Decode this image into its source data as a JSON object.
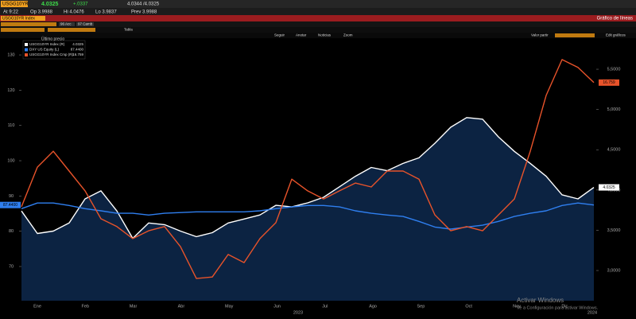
{
  "header": {
    "ticker": "USGG10YR",
    "last": "4.0325",
    "change": "+.0337",
    "bidask": "4.0344 /4.0325",
    "at": "At 9:22",
    "open": "Op 3.9988",
    "high": "Hi 4.0476",
    "low": "Lo 3.9837",
    "prev": "Prev 3.9988"
  },
  "title_bar": {
    "security": "USGG10YR Index",
    "view": "Gráfico de líneas"
  },
  "toolbar": [
    "96 Acc",
    "97 Camb"
  ],
  "table_button": "Tabla",
  "tools": [
    "Seguir",
    "Anotar",
    "Noticias",
    "Zoom"
  ],
  "tools_right": [
    "Valor partir",
    "Edit gráficos"
  ],
  "chart_data": {
    "type": "line",
    "legend_title": "Último precio",
    "months": [
      "Ene",
      "Feb",
      "Mar",
      "Abr",
      "May",
      "Jun",
      "Jul",
      "Ago",
      "Sep",
      "Oct",
      "Nov",
      "Dic"
    ],
    "year_labels": [
      "2023",
      "2024"
    ],
    "ylim": [
      60.3,
      134.3
    ],
    "yticks": [
      70,
      80,
      90,
      100,
      110,
      120,
      130
    ],
    "y2lim": [
      2.625,
      5.866
    ],
    "y2ticks": [
      {
        "value": 3,
        "label": "3,0000"
      },
      {
        "value": 3.5,
        "label": "3,5000"
      },
      {
        "value": 4,
        "label": "4,0000"
      },
      {
        "value": 4.5,
        "label": "4,5000"
      },
      {
        "value": 5,
        "label": "5,0000"
      },
      {
        "value": 5.5,
        "label": "5,5000"
      }
    ],
    "y3lim": [
      8.4,
      18.4
    ],
    "series": [
      {
        "name": "USGG10YR Index (R)",
        "color": "#ffffff",
        "axis": "y2",
        "area": true,
        "area_color": "#0c2342",
        "last_label": "4.0325",
        "values": [
          3.74,
          3.46,
          3.49,
          3.59,
          3.89,
          3.99,
          3.74,
          3.4,
          3.59,
          3.57,
          3.49,
          3.42,
          3.47,
          3.59,
          3.64,
          3.69,
          3.81,
          3.79,
          3.84,
          3.91,
          4.04,
          4.17,
          4.28,
          4.24,
          4.33,
          4.4,
          4.58,
          4.78,
          4.9,
          4.88,
          4.66,
          4.48,
          4.33,
          4.17,
          3.94,
          3.89,
          4.0325
        ]
      },
      {
        "name": "DXY US Equity (L)",
        "color": "#2f7ff0",
        "axis": "y",
        "last_label": "87.4400",
        "values": [
          86.4,
          88.0,
          88.0,
          87.3,
          86.4,
          85.8,
          85.1,
          85.1,
          84.6,
          85.1,
          85.3,
          85.5,
          85.5,
          85.5,
          85.5,
          85.8,
          86.4,
          86.9,
          87.3,
          87.3,
          86.9,
          85.8,
          85.1,
          84.6,
          84.2,
          82.8,
          81.2,
          80.6,
          81.2,
          81.7,
          82.8,
          84.2,
          85.1,
          85.8,
          87.3,
          88.0,
          87.44
        ]
      },
      {
        "name": "USGG10YR Index Cmp (R)",
        "color": "#e8532a",
        "axis": "y3",
        "last_label": "16.759",
        "values": [
          12.0,
          13.52,
          14.13,
          13.37,
          12.61,
          11.54,
          11.24,
          10.78,
          11.08,
          11.24,
          10.47,
          9.25,
          9.31,
          10.17,
          9.86,
          10.78,
          11.39,
          13.06,
          12.61,
          12.3,
          12.61,
          12.91,
          12.76,
          13.37,
          13.37,
          13.06,
          11.69,
          11.08,
          11.24,
          11.08,
          11.69,
          12.3,
          14.13,
          16.27,
          17.64,
          17.34,
          16.759
        ]
      }
    ]
  },
  "watermark": {
    "title": "Activar Windows",
    "text": "Ve a Configuración para activar Windows."
  }
}
